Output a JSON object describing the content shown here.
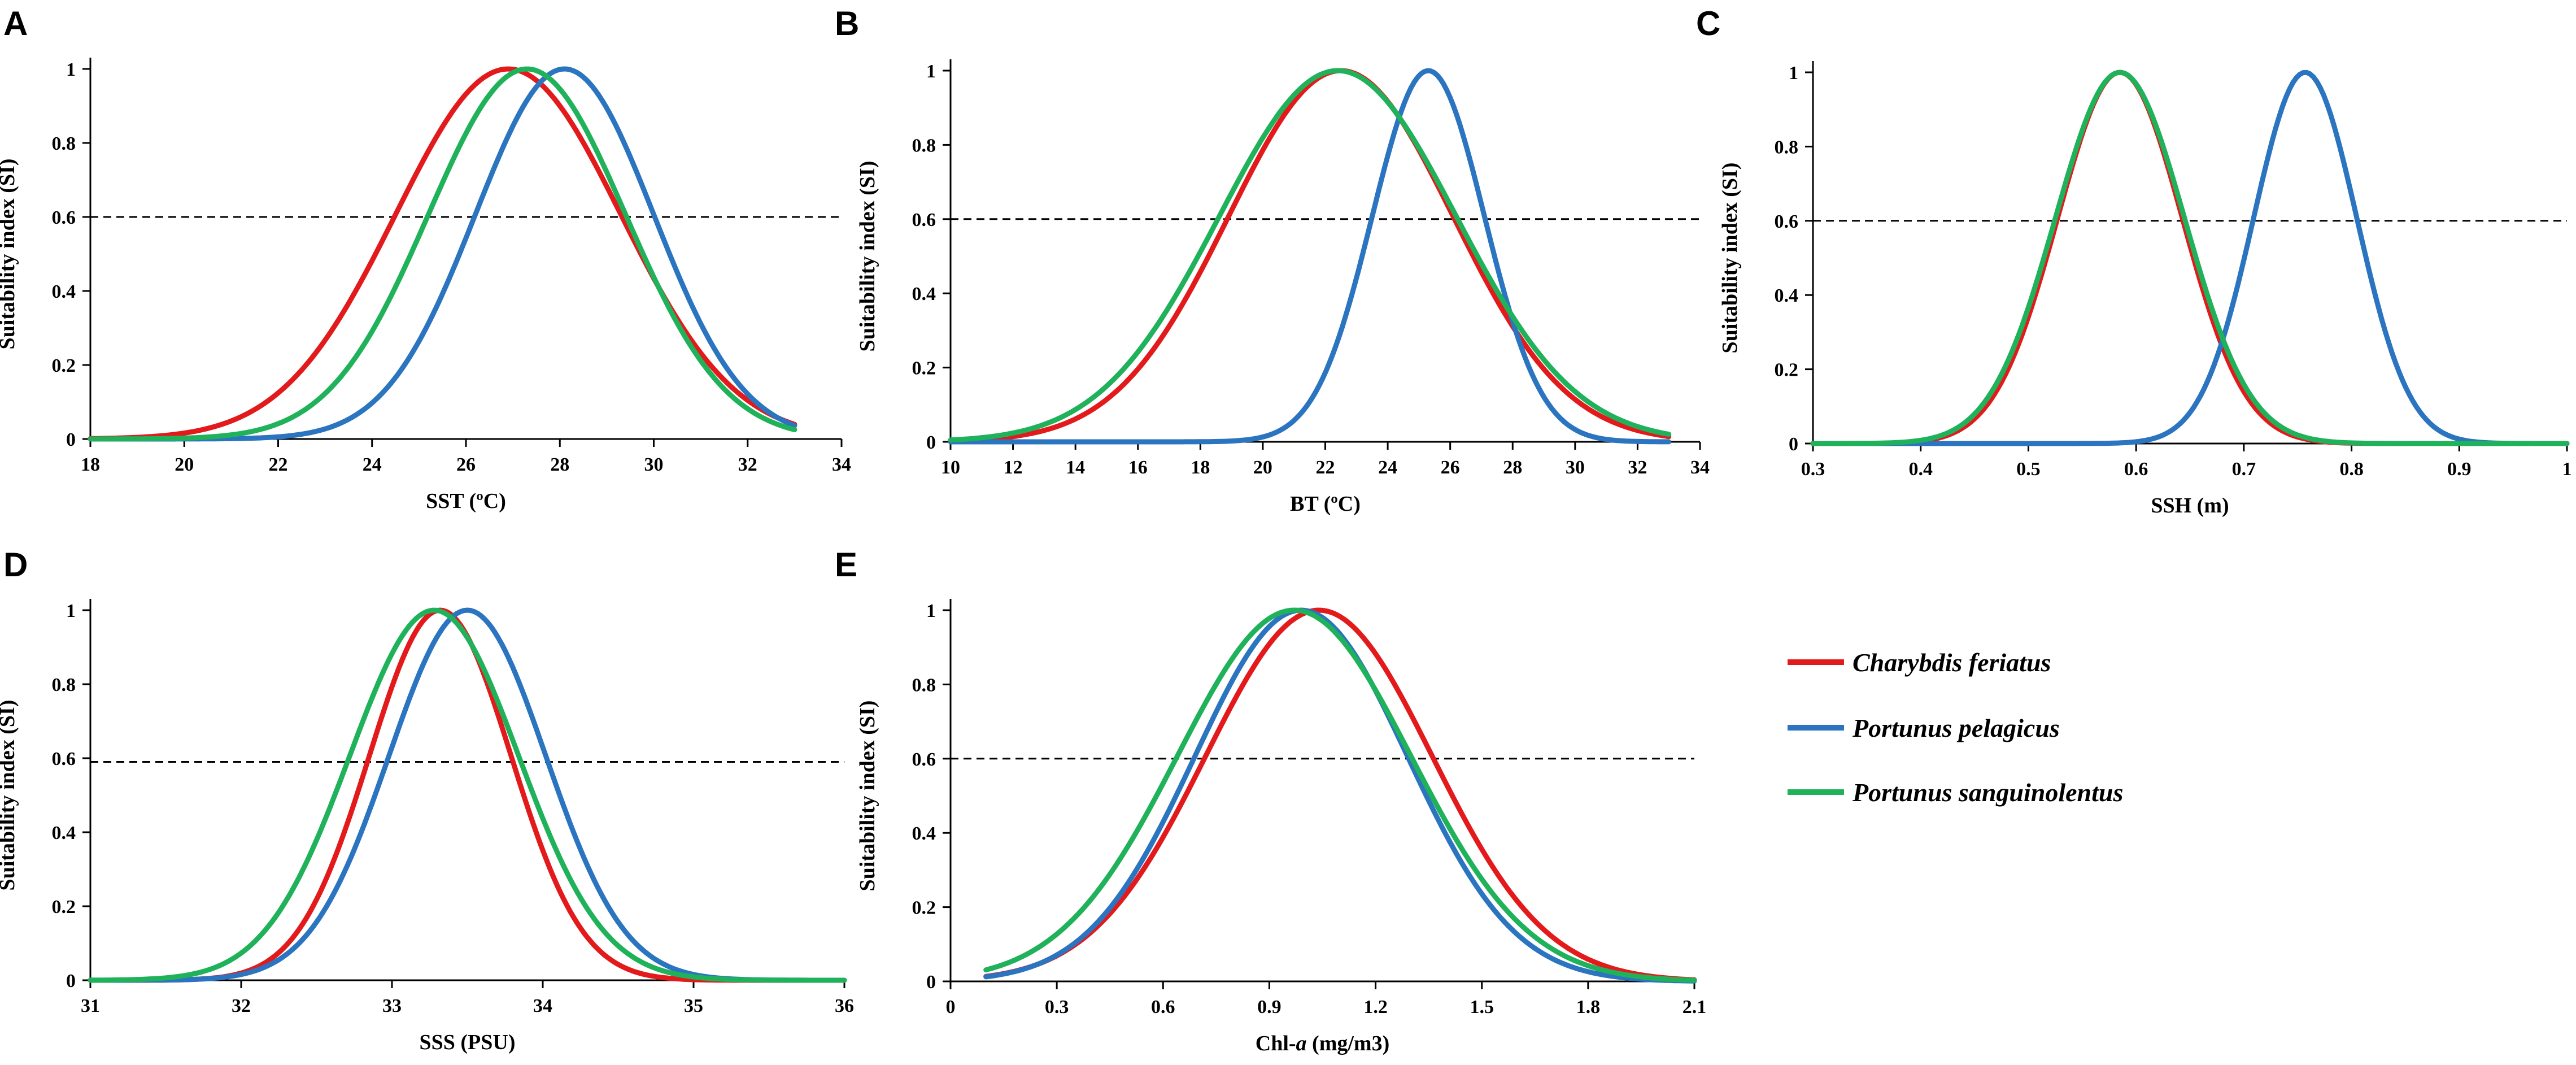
{
  "legend": [
    {
      "name": "Charybdis feriatus",
      "color": "#e31a1c"
    },
    {
      "name": "Portunus pelagicus",
      "color": "#2b74c0"
    },
    {
      "name": "Portunus sanguinolentus",
      "color": "#1fb25a"
    }
  ],
  "chart_data": [
    {
      "panel": "A",
      "type": "line",
      "xlabel": "SST (ºC)",
      "ylabel": "Suitability index (SI)",
      "xlim": [
        18,
        34
      ],
      "ylim": [
        0,
        1
      ],
      "xticks": [
        "18",
        "20",
        "22",
        "24",
        "26",
        "28",
        "30",
        "32",
        "34"
      ],
      "yticks": [
        "0",
        "0.2",
        "0.4",
        "0.6",
        "0.8",
        "1"
      ],
      "threshold": 0.6,
      "series": [
        {
          "name": "Charybdis feriatus",
          "mu": 26.9,
          "sigma": 2.4,
          "x_range": [
            18,
            33
          ]
        },
        {
          "name": "Portunus pelagicus",
          "mu": 28.1,
          "sigma": 1.9,
          "x_range": [
            18,
            33
          ]
        },
        {
          "name": "Portunus sanguinolentus",
          "mu": 27.3,
          "sigma": 2.1,
          "x_range": [
            18,
            33
          ]
        }
      ]
    },
    {
      "panel": "B",
      "type": "line",
      "xlabel": "BT (ºC)",
      "ylabel": "Suitability index (SI)",
      "xlim": [
        10,
        34
      ],
      "ylim": [
        0,
        1
      ],
      "xticks": [
        "10",
        "12",
        "14",
        "16",
        "18",
        "20",
        "22",
        "24",
        "26",
        "28",
        "30",
        "32",
        "34"
      ],
      "yticks": [
        "0",
        "0.2",
        "0.4",
        "0.6",
        "0.8",
        "1"
      ],
      "threshold": 0.6,
      "series": [
        {
          "name": "Charybdis feriatus",
          "mu": 22.5,
          "sigma": 3.6,
          "x_range": [
            10,
            33
          ]
        },
        {
          "name": "Portunus pelagicus",
          "mu": 25.3,
          "sigma": 1.8,
          "x_range": [
            10,
            33
          ]
        },
        {
          "name": "Portunus sanguinolentus",
          "mu": 22.4,
          "sigma": 3.8,
          "x_range": [
            10,
            33
          ]
        }
      ]
    },
    {
      "panel": "C",
      "type": "line",
      "xlabel": "SSH (m)",
      "ylabel": "Suitability index (SI)",
      "xlim": [
        0.3,
        1
      ],
      "ylim": [
        0,
        1
      ],
      "xticks": [
        "0.3",
        "0.4",
        "0.5",
        "0.6",
        "0.7",
        "0.8",
        "0.9",
        "1"
      ],
      "yticks": [
        "0",
        "0.2",
        "0.4",
        "0.6",
        "0.8",
        "1"
      ],
      "threshold": 0.6,
      "series": [
        {
          "name": "Charybdis feriatus",
          "mu": 0.585,
          "sigma": 0.058,
          "x_range": [
            0.3,
            1
          ]
        },
        {
          "name": "Portunus pelagicus",
          "mu": 0.757,
          "sigma": 0.048,
          "x_range": [
            0.3,
            1
          ]
        },
        {
          "name": "Portunus sanguinolentus",
          "mu": 0.585,
          "sigma": 0.06,
          "x_range": [
            0.3,
            1
          ]
        }
      ]
    },
    {
      "panel": "D",
      "type": "line",
      "xlabel": "SSS (PSU)",
      "ylabel": "Suitability index (SI)",
      "xlim": [
        31,
        36
      ],
      "ylim": [
        0,
        1
      ],
      "xticks": [
        "31",
        "32",
        "33",
        "34",
        "35",
        "36"
      ],
      "yticks": [
        "0",
        "0.2",
        "0.4",
        "0.6",
        "0.8",
        "1"
      ],
      "threshold": 0.59,
      "series": [
        {
          "name": "Charybdis feriatus",
          "mu": 33.32,
          "sigma": 0.47,
          "x_range": [
            31,
            36
          ]
        },
        {
          "name": "Portunus pelagicus",
          "mu": 33.5,
          "sigma": 0.52,
          "x_range": [
            31,
            36
          ]
        },
        {
          "name": "Portunus sanguinolentus",
          "mu": 33.28,
          "sigma": 0.56,
          "x_range": [
            31,
            36
          ]
        }
      ]
    },
    {
      "panel": "E",
      "type": "line",
      "xlabel": "Chl-a (mg/m3)",
      "ylabel": "Suitability index (SI)",
      "xlim": [
        0,
        2.1
      ],
      "ylim": [
        0,
        1
      ],
      "xticks": [
        "0",
        "0.3",
        "0.6",
        "0.9",
        "1.2",
        "1.5",
        "1.8",
        "2.1"
      ],
      "yticks": [
        "0",
        "0.2",
        "0.4",
        "0.6",
        "0.8",
        "1"
      ],
      "threshold": 0.6,
      "series": [
        {
          "name": "Charybdis feriatus",
          "mu": 1.04,
          "sigma": 0.32,
          "x_range": [
            0.1,
            2.1
          ]
        },
        {
          "name": "Portunus pelagicus",
          "mu": 0.99,
          "sigma": 0.3,
          "x_range": [
            0.1,
            2.1
          ]
        },
        {
          "name": "Portunus sanguinolentus",
          "mu": 0.97,
          "sigma": 0.33,
          "x_range": [
            0.1,
            2.1
          ]
        }
      ]
    }
  ]
}
